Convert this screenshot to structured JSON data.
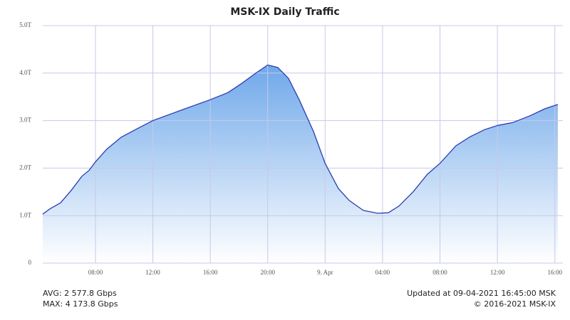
{
  "chart_data": {
    "type": "area",
    "title": "MSK-IX Daily Traffic",
    "x": [
      4.33,
      4.82,
      5.57,
      6.31,
      7.06,
      7.55,
      8,
      8.79,
      9.79,
      10.78,
      12,
      13.26,
      14.25,
      16,
      17.23,
      18.22,
      19.22,
      20,
      20.7,
      21.44,
      22.19,
      23.19,
      24,
      24.92,
      25.67,
      26.66,
      27.65,
      28.4,
      29.14,
      30.13,
      31.12,
      32,
      33.11,
      34.1,
      35.1,
      36.04,
      37.08,
      38.32,
      39.31,
      40.21
    ],
    "series": [
      {
        "name": "Traffic",
        "color": "#2b3cb3",
        "values": [
          1.03,
          1.14,
          1.27,
          1.53,
          1.83,
          1.95,
          2.13,
          2.4,
          2.65,
          2.81,
          3.0,
          3.14,
          3.25,
          3.44,
          3.59,
          3.79,
          4.01,
          4.17,
          4.12,
          3.89,
          3.44,
          2.77,
          2.1,
          1.57,
          1.32,
          1.11,
          1.05,
          1.06,
          1.2,
          1.5,
          1.87,
          2.1,
          2.47,
          2.66,
          2.81,
          2.9,
          2.96,
          3.11,
          3.25,
          3.34
        ]
      }
    ],
    "xlim": [
      4.33,
      40.56
    ],
    "xticks": [
      {
        "value": 8,
        "label": "08:00"
      },
      {
        "value": 12,
        "label": "12:00"
      },
      {
        "value": 16,
        "label": "16:00"
      },
      {
        "value": 20,
        "label": "20:00"
      },
      {
        "value": 24,
        "label": "9. Apr"
      },
      {
        "value": 28,
        "label": "04:00"
      },
      {
        "value": 32,
        "label": "08:00"
      },
      {
        "value": 36,
        "label": "12:00"
      },
      {
        "value": 40,
        "label": "16:00"
      }
    ],
    "ylim": [
      0,
      5
    ],
    "yticks": [
      0,
      {
        "value": 1,
        "label": "1.0T"
      },
      {
        "value": 2,
        "label": "2.0T"
      },
      {
        "value": 3,
        "label": "3.0T"
      },
      {
        "value": 4,
        "label": "4.0T"
      },
      {
        "value": 5,
        "label": "5.0T"
      }
    ],
    "grid": true,
    "notes": {
      "avg": "AVG: 2 577.8 Gbps",
      "max": "MAX: 4 173.8 Gbps",
      "updated": "Updated at 09-04-2021 16:45:00 MSK",
      "copyright": "© 2016-2021 MSK-IX"
    }
  }
}
